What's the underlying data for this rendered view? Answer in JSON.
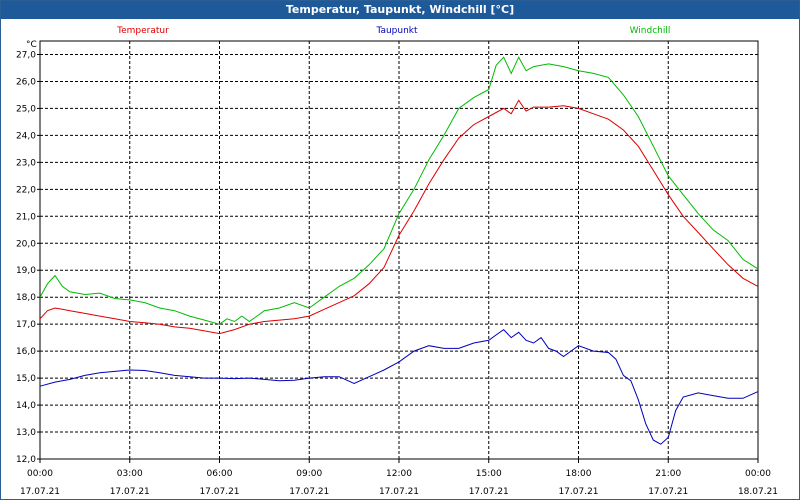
{
  "window": {
    "title": "Temperatur, Taupunkt, Windchill [°C]"
  },
  "colors": {
    "titlebar": "#1e5a9a",
    "grid": "#000000"
  },
  "chart_data": {
    "type": "line",
    "ylabel": "°C",
    "ylim": [
      12.0,
      27.5
    ],
    "yticks": [
      "12,0",
      "13,0",
      "14,0",
      "15,0",
      "16,0",
      "17,0",
      "18,0",
      "19,0",
      "20,0",
      "21,0",
      "22,0",
      "23,0",
      "24,0",
      "25,0",
      "26,0",
      "27,0"
    ],
    "ytick_values": [
      12,
      13,
      14,
      15,
      16,
      17,
      18,
      19,
      20,
      21,
      22,
      23,
      24,
      25,
      26,
      27
    ],
    "xlim": [
      0,
      24
    ],
    "xticks": [
      {
        "h": 0,
        "time": "00:00",
        "date": "17.07.21"
      },
      {
        "h": 3,
        "time": "03:00",
        "date": "17.07.21"
      },
      {
        "h": 6,
        "time": "06:00",
        "date": "17.07.21"
      },
      {
        "h": 9,
        "time": "09:00",
        "date": "17.07.21"
      },
      {
        "h": 12,
        "time": "12:00",
        "date": "17.07.21"
      },
      {
        "h": 15,
        "time": "15:00",
        "date": "17.07.21"
      },
      {
        "h": 18,
        "time": "18:00",
        "date": "17.07.21"
      },
      {
        "h": 21,
        "time": "21:00",
        "date": "17.07.21"
      },
      {
        "h": 24,
        "time": "00:00",
        "date": "18.07.21"
      }
    ],
    "grid": true,
    "legend_position": "top",
    "series": [
      {
        "name": "Temperatur",
        "color": "#dd0000",
        "x": [
          0,
          0.25,
          0.5,
          0.75,
          1,
          1.5,
          2,
          2.5,
          3,
          3.5,
          4,
          4.5,
          5,
          5.5,
          6,
          6.5,
          7,
          7.5,
          8,
          8.5,
          9,
          9.5,
          10,
          10.5,
          11,
          11.5,
          12,
          12.5,
          13,
          13.5,
          14,
          14.5,
          15,
          15.5,
          15.75,
          16,
          16.25,
          16.5,
          17,
          17.5,
          18,
          18.5,
          19,
          19.5,
          20,
          20.5,
          21,
          21.5,
          22,
          22.5,
          23,
          23.5,
          24
        ],
        "y": [
          17.2,
          17.5,
          17.6,
          17.55,
          17.5,
          17.4,
          17.3,
          17.2,
          17.1,
          17.05,
          17.0,
          16.9,
          16.85,
          16.75,
          16.65,
          16.8,
          17.0,
          17.1,
          17.15,
          17.2,
          17.3,
          17.55,
          17.8,
          18.05,
          18.5,
          19.1,
          20.3,
          21.2,
          22.2,
          23.1,
          23.9,
          24.4,
          24.7,
          25.0,
          24.8,
          25.3,
          24.9,
          25.05,
          25.05,
          25.1,
          25.0,
          24.8,
          24.6,
          24.2,
          23.6,
          22.7,
          21.8,
          21.0,
          20.4,
          19.8,
          19.2,
          18.7,
          18.4
        ]
      },
      {
        "name": "Taupunkt",
        "color": "#0000bb",
        "x": [
          0,
          0.5,
          1,
          1.5,
          2,
          2.5,
          3,
          3.5,
          4,
          4.5,
          5,
          5.5,
          6,
          6.5,
          7,
          7.5,
          8,
          8.5,
          9,
          9.5,
          10,
          10.5,
          11,
          11.5,
          12,
          12.5,
          13,
          13.5,
          14,
          14.5,
          15,
          15.25,
          15.5,
          15.75,
          16,
          16.25,
          16.5,
          16.75,
          17,
          17.25,
          17.5,
          17.75,
          18,
          18.5,
          19,
          19.25,
          19.5,
          19.75,
          20,
          20.25,
          20.5,
          20.75,
          21,
          21.25,
          21.5,
          22,
          22.5,
          23,
          23.5,
          24
        ],
        "y": [
          14.7,
          14.85,
          14.95,
          15.1,
          15.2,
          15.25,
          15.3,
          15.28,
          15.2,
          15.1,
          15.05,
          15.0,
          15.0,
          14.98,
          15.0,
          14.95,
          14.9,
          14.92,
          15.0,
          15.05,
          15.05,
          14.8,
          15.05,
          15.3,
          15.6,
          16.0,
          16.2,
          16.1,
          16.1,
          16.3,
          16.4,
          16.6,
          16.8,
          16.5,
          16.7,
          16.4,
          16.3,
          16.5,
          16.1,
          16.0,
          15.8,
          16.0,
          16.2,
          16.0,
          15.95,
          15.7,
          15.1,
          14.9,
          14.2,
          13.3,
          12.7,
          12.55,
          12.8,
          13.8,
          14.3,
          14.45,
          14.35,
          14.25,
          14.25,
          14.5
        ]
      },
      {
        "name": "Windchill",
        "color": "#00bb00",
        "x": [
          0,
          0.25,
          0.5,
          0.75,
          1,
          1.5,
          2,
          2.5,
          3,
          3.5,
          4,
          4.5,
          5,
          5.5,
          6,
          6.25,
          6.5,
          6.75,
          7,
          7.5,
          8,
          8.5,
          9,
          9.5,
          10,
          10.5,
          11,
          11.5,
          12,
          12.5,
          13,
          13.5,
          14,
          14.5,
          15,
          15.25,
          15.5,
          15.75,
          16,
          16.25,
          16.5,
          17,
          17.5,
          18,
          18.5,
          19,
          19.5,
          20,
          20.5,
          21,
          21.5,
          22,
          22.5,
          23,
          23.5,
          24
        ],
        "y": [
          18.0,
          18.5,
          18.8,
          18.4,
          18.2,
          18.1,
          18.15,
          17.95,
          17.9,
          17.8,
          17.6,
          17.5,
          17.3,
          17.15,
          17.0,
          17.2,
          17.1,
          17.3,
          17.1,
          17.5,
          17.6,
          17.8,
          17.6,
          18.0,
          18.4,
          18.7,
          19.2,
          19.8,
          21.1,
          22.0,
          23.1,
          24.0,
          25.0,
          25.4,
          25.7,
          26.6,
          26.9,
          26.3,
          26.9,
          26.4,
          26.55,
          26.65,
          26.55,
          26.4,
          26.3,
          26.15,
          25.5,
          24.7,
          23.6,
          22.5,
          21.8,
          21.1,
          20.5,
          20.1,
          19.4,
          19.05
        ]
      }
    ]
  }
}
